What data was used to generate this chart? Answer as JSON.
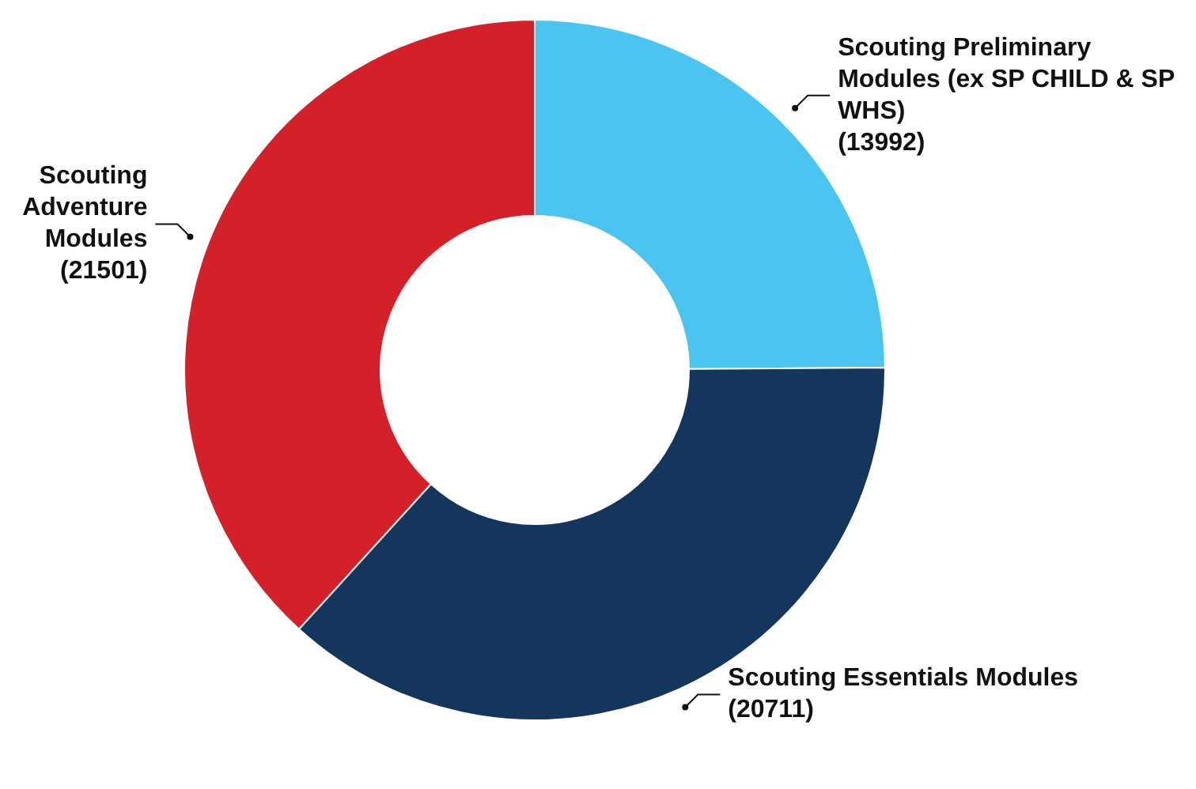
{
  "chart_data": {
    "type": "donut",
    "categories": [
      "Scouting Preliminary Modules (ex SP CHILD & SP WHS)",
      "Scouting Essentials Modules",
      "Scouting Adventure Modules"
    ],
    "values": [
      13992,
      20711,
      21501
    ],
    "value_labels": [
      "(13992)",
      "(20711)",
      "(21501)"
    ],
    "colors": [
      "#4bc5f0",
      "#14365d",
      "#d42029"
    ],
    "legend": false
  }
}
